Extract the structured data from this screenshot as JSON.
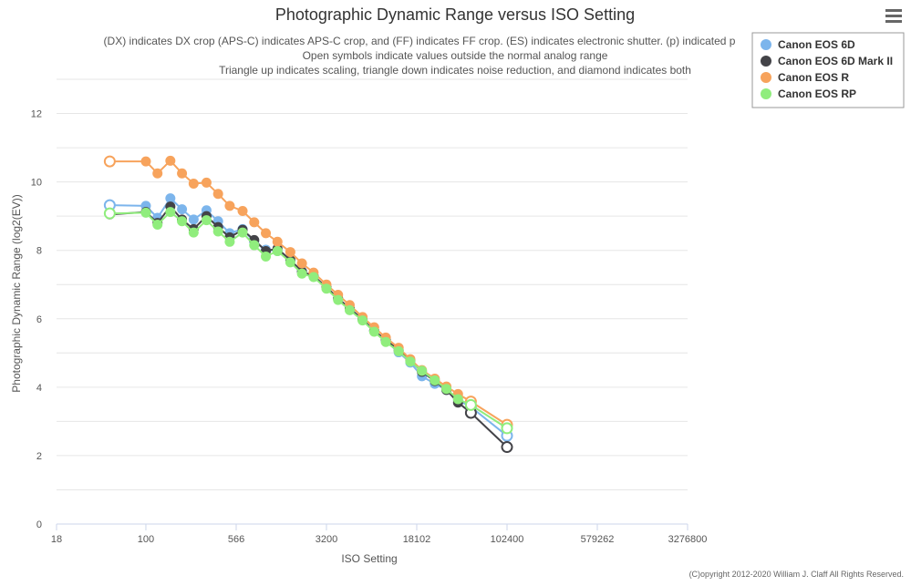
{
  "chart_data": {
    "type": "line",
    "title": "Photographic Dynamic Range versus ISO Setting",
    "subtitle": [
      "(DX) indicates DX crop (APS-C) indicates APS-C crop, and (FF) indicates FF crop. (ES) indicates electronic shutter. (p) indicated p",
      "Open symbols indicate values outside the normal analog range",
      "Triangle up indicates scaling, triangle down indicates noise reduction, and diamond indicates both"
    ],
    "xlabel": "ISO Setting",
    "ylabel": "Photographic Dynamic Range (log2(EV))",
    "x_scale": "log",
    "xlim": [
      18,
      3276800
    ],
    "ylim": [
      0,
      13
    ],
    "x_ticks": [
      "18",
      "100",
      "566",
      "3200",
      "18102",
      "102400",
      "579262",
      "3276800"
    ],
    "y_ticks": [
      "0",
      "2",
      "4",
      "6",
      "8",
      "10",
      "12"
    ],
    "grid": true,
    "legend_position": "top-right",
    "credit": "(C)opyright 2012-2020 William J. Claff All Rights Reserved.",
    "series": [
      {
        "name": "Canon EOS 6D",
        "color": "#7cb5ec",
        "points": [
          {
            "x": 50,
            "y": 9.32,
            "open": true
          },
          {
            "x": 100,
            "y": 9.3
          },
          {
            "x": 125,
            "y": 8.95
          },
          {
            "x": 160,
            "y": 9.52
          },
          {
            "x": 200,
            "y": 9.2
          },
          {
            "x": 250,
            "y": 8.9
          },
          {
            "x": 320,
            "y": 9.17
          },
          {
            "x": 400,
            "y": 8.85
          },
          {
            "x": 500,
            "y": 8.5
          },
          {
            "x": 640,
            "y": 8.62
          },
          {
            "x": 800,
            "y": 8.25
          },
          {
            "x": 1000,
            "y": 8.02
          },
          {
            "x": 1250,
            "y": 7.98
          },
          {
            "x": 1600,
            "y": 7.7
          },
          {
            "x": 2000,
            "y": 7.38
          },
          {
            "x": 2500,
            "y": 7.25
          },
          {
            "x": 3200,
            "y": 6.9
          },
          {
            "x": 4000,
            "y": 6.58
          },
          {
            "x": 5000,
            "y": 6.3
          },
          {
            "x": 6400,
            "y": 5.98
          },
          {
            "x": 8000,
            "y": 5.65
          },
          {
            "x": 10000,
            "y": 5.35
          },
          {
            "x": 12800,
            "y": 5.02
          },
          {
            "x": 16000,
            "y": 4.72
          },
          {
            "x": 20000,
            "y": 4.32
          },
          {
            "x": 25600,
            "y": 4.1
          },
          {
            "x": 32000,
            "y": 3.92
          },
          {
            "x": 40000,
            "y": 3.62
          },
          {
            "x": 51200,
            "y": 3.42,
            "open": true
          },
          {
            "x": 102400,
            "y": 2.58,
            "open": true
          }
        ]
      },
      {
        "name": "Canon EOS 6D Mark II",
        "color": "#434348",
        "points": [
          {
            "x": 50,
            "y": 9.05
          },
          {
            "x": 100,
            "y": 9.12
          },
          {
            "x": 125,
            "y": 8.8
          },
          {
            "x": 160,
            "y": 9.28
          },
          {
            "x": 200,
            "y": 8.9
          },
          {
            "x": 250,
            "y": 8.62
          },
          {
            "x": 320,
            "y": 9.0
          },
          {
            "x": 400,
            "y": 8.68
          },
          {
            "x": 500,
            "y": 8.38
          },
          {
            "x": 640,
            "y": 8.6
          },
          {
            "x": 800,
            "y": 8.3
          },
          {
            "x": 1000,
            "y": 7.98
          },
          {
            "x": 1250,
            "y": 8.05
          },
          {
            "x": 1600,
            "y": 7.72
          },
          {
            "x": 2000,
            "y": 7.38
          },
          {
            "x": 2500,
            "y": 7.25
          },
          {
            "x": 3200,
            "y": 6.92
          },
          {
            "x": 4000,
            "y": 6.6
          },
          {
            "x": 5000,
            "y": 6.3
          },
          {
            "x": 6400,
            "y": 5.98
          },
          {
            "x": 8000,
            "y": 5.65
          },
          {
            "x": 10000,
            "y": 5.38
          },
          {
            "x": 12800,
            "y": 5.08
          },
          {
            "x": 16000,
            "y": 4.78
          },
          {
            "x": 20000,
            "y": 4.45
          },
          {
            "x": 25600,
            "y": 4.18
          },
          {
            "x": 32000,
            "y": 3.92
          },
          {
            "x": 40000,
            "y": 3.55
          },
          {
            "x": 51200,
            "y": 3.25,
            "open": true
          },
          {
            "x": 102400,
            "y": 2.25,
            "open": true
          }
        ]
      },
      {
        "name": "Canon EOS R",
        "color": "#f7a35c",
        "points": [
          {
            "x": 50,
            "y": 10.6,
            "open": true
          },
          {
            "x": 100,
            "y": 10.6
          },
          {
            "x": 125,
            "y": 10.25
          },
          {
            "x": 160,
            "y": 10.62
          },
          {
            "x": 200,
            "y": 10.25
          },
          {
            "x": 250,
            "y": 9.95
          },
          {
            "x": 320,
            "y": 9.98
          },
          {
            "x": 400,
            "y": 9.65
          },
          {
            "x": 500,
            "y": 9.3
          },
          {
            "x": 640,
            "y": 9.15
          },
          {
            "x": 800,
            "y": 8.82
          },
          {
            "x": 1000,
            "y": 8.5
          },
          {
            "x": 1250,
            "y": 8.25
          },
          {
            "x": 1600,
            "y": 7.95
          },
          {
            "x": 2000,
            "y": 7.62
          },
          {
            "x": 2500,
            "y": 7.35
          },
          {
            "x": 3200,
            "y": 7.0
          },
          {
            "x": 4000,
            "y": 6.7
          },
          {
            "x": 5000,
            "y": 6.4
          },
          {
            "x": 6400,
            "y": 6.05
          },
          {
            "x": 8000,
            "y": 5.75
          },
          {
            "x": 10000,
            "y": 5.45
          },
          {
            "x": 12800,
            "y": 5.15
          },
          {
            "x": 16000,
            "y": 4.82
          },
          {
            "x": 20000,
            "y": 4.5
          },
          {
            "x": 25600,
            "y": 4.25
          },
          {
            "x": 32000,
            "y": 4.02
          },
          {
            "x": 40000,
            "y": 3.8
          },
          {
            "x": 51200,
            "y": 3.58,
            "open": true
          },
          {
            "x": 102400,
            "y": 2.9,
            "open": true
          }
        ]
      },
      {
        "name": "Canon EOS RP",
        "color": "#90ed7d",
        "points": [
          {
            "x": 50,
            "y": 9.08,
            "open": true
          },
          {
            "x": 100,
            "y": 9.1
          },
          {
            "x": 125,
            "y": 8.75
          },
          {
            "x": 160,
            "y": 9.12
          },
          {
            "x": 200,
            "y": 8.85
          },
          {
            "x": 250,
            "y": 8.52
          },
          {
            "x": 320,
            "y": 8.88
          },
          {
            "x": 400,
            "y": 8.55
          },
          {
            "x": 500,
            "y": 8.25
          },
          {
            "x": 640,
            "y": 8.52
          },
          {
            "x": 800,
            "y": 8.15
          },
          {
            "x": 1000,
            "y": 7.82
          },
          {
            "x": 1250,
            "y": 7.98
          },
          {
            "x": 1600,
            "y": 7.65
          },
          {
            "x": 2000,
            "y": 7.32
          },
          {
            "x": 2500,
            "y": 7.22
          },
          {
            "x": 3200,
            "y": 6.88
          },
          {
            "x": 4000,
            "y": 6.55
          },
          {
            "x": 5000,
            "y": 6.25
          },
          {
            "x": 6400,
            "y": 5.95
          },
          {
            "x": 8000,
            "y": 5.62
          },
          {
            "x": 10000,
            "y": 5.32
          },
          {
            "x": 12800,
            "y": 5.05
          },
          {
            "x": 16000,
            "y": 4.75
          },
          {
            "x": 20000,
            "y": 4.48
          },
          {
            "x": 25600,
            "y": 4.2
          },
          {
            "x": 32000,
            "y": 3.95
          },
          {
            "x": 40000,
            "y": 3.65
          },
          {
            "x": 51200,
            "y": 3.48,
            "open": true
          },
          {
            "x": 102400,
            "y": 2.8,
            "open": true
          }
        ]
      }
    ]
  },
  "menu": {
    "icon": "hamburger-menu-icon"
  }
}
